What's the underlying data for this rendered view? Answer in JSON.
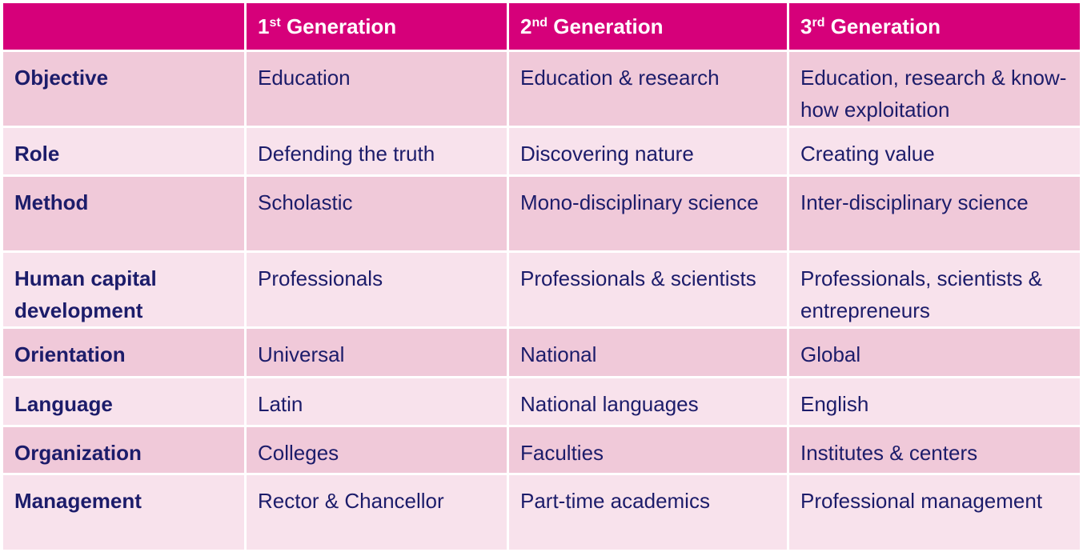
{
  "table": {
    "columns": [
      {
        "number": "1",
        "suffix": "st",
        "label": "Generation"
      },
      {
        "number": "2",
        "suffix": "nd",
        "label": "Generation"
      },
      {
        "number": "3",
        "suffix": "rd",
        "label": "Generation"
      }
    ],
    "rows": [
      {
        "label": "Objective",
        "cells": [
          "Education",
          "Education & research",
          "Education, research & know-how exploitation"
        ]
      },
      {
        "label": "Role",
        "cells": [
          "Defending the truth",
          "Discovering nature",
          "Creating value"
        ]
      },
      {
        "label": "Method",
        "cells": [
          "Scholastic",
          "Mono-disciplinary science",
          "Inter-disciplinary science"
        ]
      },
      {
        "label": "Human capital development",
        "cells": [
          "Professionals",
          "Professionals & scientists",
          "Professionals, scientists & entrepreneurs"
        ]
      },
      {
        "label": "Orientation",
        "cells": [
          "Universal",
          "National",
          "Global"
        ]
      },
      {
        "label": "Language",
        "cells": [
          "Latin",
          "National languages",
          "English"
        ]
      },
      {
        "label": "Organization",
        "cells": [
          "Colleges",
          "Faculties",
          "Institutes & centers"
        ]
      },
      {
        "label": "Management",
        "cells": [
          "Rector & Chancellor",
          "Part-time academics",
          "Professional management"
        ]
      }
    ]
  }
}
